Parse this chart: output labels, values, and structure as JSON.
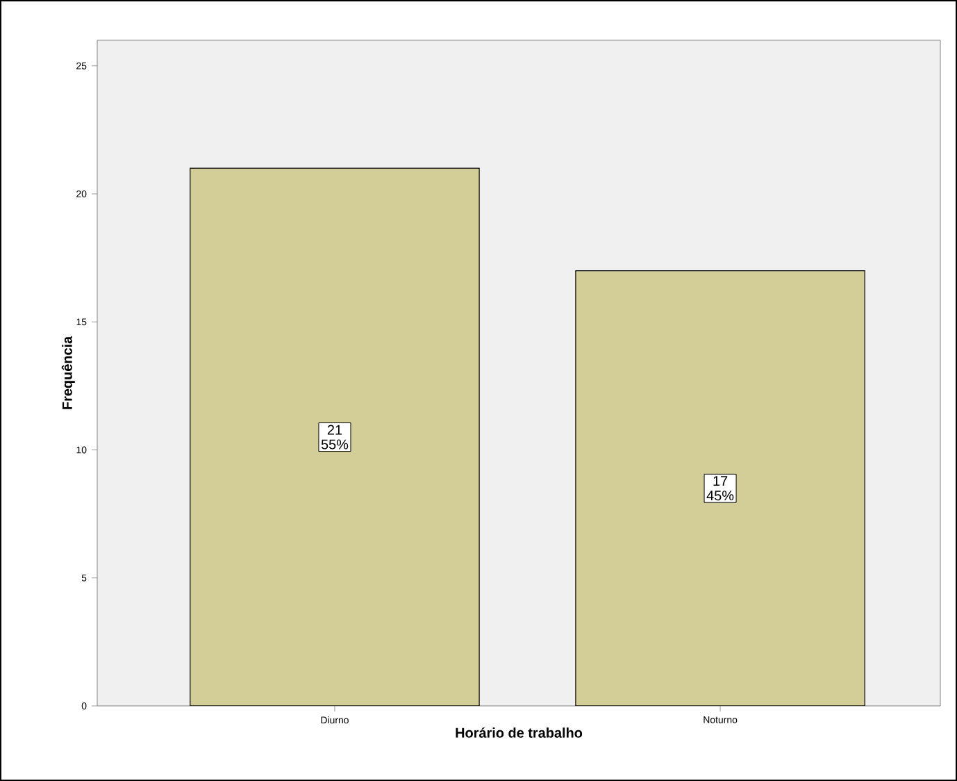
{
  "chart_data": {
    "type": "bar",
    "categories": [
      "Diurno",
      "Noturno"
    ],
    "values": [
      21,
      17
    ],
    "value_labels": [
      "21 55%",
      "17 45%"
    ],
    "color": "#d3ce97",
    "xlabel": "Horário de trabalho",
    "ylabel": "Frequência",
    "ylim": [
      0,
      26
    ],
    "yticks": [
      0,
      5,
      10,
      15,
      20,
      25
    ]
  }
}
